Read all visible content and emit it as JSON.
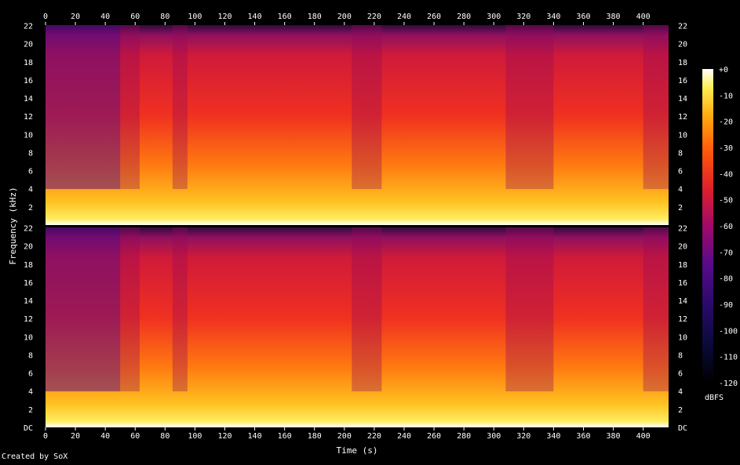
{
  "chart_data": {
    "type": "heatmap",
    "title": "",
    "xlabel": "Time (s)",
    "ylabel": "Frequency (kHz)",
    "xlim": [
      0,
      417
    ],
    "ylim": [
      0,
      22.05
    ],
    "x_ticks": [
      "0",
      "20",
      "40",
      "60",
      "80",
      "100",
      "120",
      "140",
      "160",
      "180",
      "200",
      "220",
      "240",
      "260",
      "280",
      "300",
      "320",
      "340",
      "360",
      "380",
      "400"
    ],
    "y_ticks": [
      "DC",
      "2",
      "4",
      "6",
      "8",
      "10",
      "12",
      "14",
      "16",
      "18",
      "20",
      "22"
    ],
    "y_tick_values": [
      0,
      2,
      4,
      6,
      8,
      10,
      12,
      14,
      16,
      18,
      20,
      22
    ],
    "channels": 2,
    "colorbar": {
      "label": "dBFS",
      "ticks": [
        "+0",
        "-10",
        "-20",
        "-30",
        "-40",
        "-50",
        "-60",
        "-70",
        "-80",
        "-90",
        "-100",
        "-110",
        "-120"
      ],
      "range": [
        -120,
        0
      ]
    },
    "loudness_segments": [
      {
        "t0": 0,
        "t1": 50,
        "level": "quiet"
      },
      {
        "t0": 50,
        "t1": 63,
        "level": "mid"
      },
      {
        "t0": 63,
        "t1": 85,
        "level": "loud"
      },
      {
        "t0": 85,
        "t1": 95,
        "level": "mid"
      },
      {
        "t0": 95,
        "t1": 180,
        "level": "loud"
      },
      {
        "t0": 180,
        "t1": 205,
        "level": "loud"
      },
      {
        "t0": 205,
        "t1": 225,
        "level": "mid"
      },
      {
        "t0": 225,
        "t1": 262,
        "level": "loud"
      },
      {
        "t0": 262,
        "t1": 308,
        "level": "loud"
      },
      {
        "t0": 308,
        "t1": 340,
        "level": "mid"
      },
      {
        "t0": 340,
        "t1": 400,
        "level": "loud"
      },
      {
        "t0": 400,
        "t1": 417,
        "level": "mid"
      }
    ]
  },
  "credit": "Created by SoX"
}
